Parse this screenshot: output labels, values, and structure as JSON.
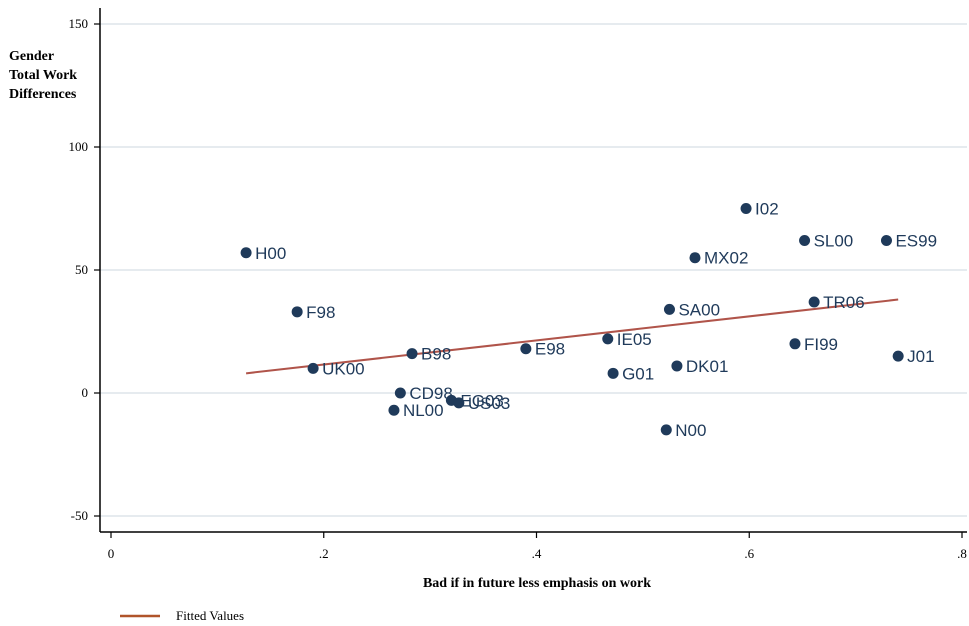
{
  "chart_data": {
    "type": "scatter",
    "ylabel_lines": [
      "Gender",
      "Total Work",
      "Differences"
    ],
    "xlabel": "Bad if in future less emphasis on work",
    "xlim": [
      0,
      0.8
    ],
    "ylim": [
      -55,
      155
    ],
    "x_ticks": [
      0,
      0.2,
      0.4,
      0.6,
      0.8
    ],
    "x_tick_labels": [
      "0",
      ".2",
      ".4",
      ".6",
      ".8"
    ],
    "y_ticks": [
      -50,
      0,
      50,
      100,
      150
    ],
    "y_tick_labels": [
      "-50",
      "0",
      "50",
      "100",
      "150"
    ],
    "grid": true,
    "points": [
      {
        "label": "H00",
        "x": 0.127,
        "y": 57
      },
      {
        "label": "F98",
        "x": 0.175,
        "y": 33
      },
      {
        "label": "UK00",
        "x": 0.19,
        "y": 10
      },
      {
        "label": "B98",
        "x": 0.283,
        "y": 16
      },
      {
        "label": "CD98",
        "x": 0.272,
        "y": 0
      },
      {
        "label": "NL00",
        "x": 0.266,
        "y": -7
      },
      {
        "label": "EG03",
        "x": 0.32,
        "y": -3
      },
      {
        "label": "US03",
        "x": 0.327,
        "y": -4
      },
      {
        "label": "E98",
        "x": 0.39,
        "y": 18
      },
      {
        "label": "IE05",
        "x": 0.467,
        "y": 22
      },
      {
        "label": "G01",
        "x": 0.472,
        "y": 8
      },
      {
        "label": "SA00",
        "x": 0.525,
        "y": 34
      },
      {
        "label": "N00",
        "x": 0.522,
        "y": -15
      },
      {
        "label": "DK01",
        "x": 0.532,
        "y": 11
      },
      {
        "label": "MX02",
        "x": 0.549,
        "y": 55
      },
      {
        "label": "I02",
        "x": 0.597,
        "y": 75
      },
      {
        "label": "FI99",
        "x": 0.643,
        "y": 20
      },
      {
        "label": "SL00",
        "x": 0.652,
        "y": 62
      },
      {
        "label": "TR06",
        "x": 0.661,
        "y": 37
      },
      {
        "label": "ES99",
        "x": 0.729,
        "y": 62
      },
      {
        "label": "J01",
        "x": 0.74,
        "y": 15
      }
    ],
    "fit_line": {
      "name": "Fitted Values",
      "x": [
        0.127,
        0.74
      ],
      "y": [
        8,
        38
      ]
    },
    "colors": {
      "points": "#1f3a5a",
      "fit": "#b0544a",
      "grid": "#e6ebef",
      "legend_line": "#b0542a"
    }
  }
}
